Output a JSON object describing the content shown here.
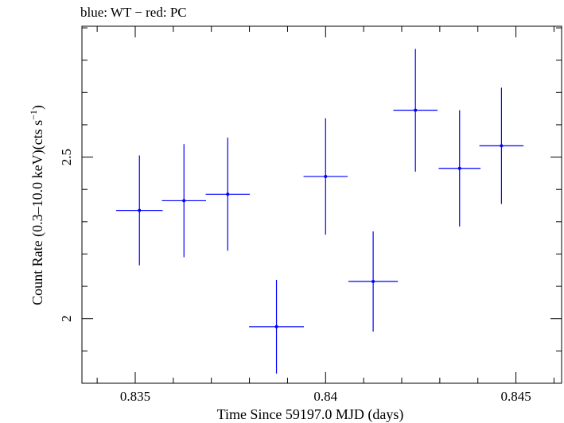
{
  "chart_data": {
    "type": "scatter",
    "title": "blue: WT − red: PC",
    "xlabel": "Time Since 59197.0 MJD (days)",
    "ylabel_main": "Count Rate (0.3–10.0 keV)(cts s",
    "ylabel_sup": "−1",
    "ylabel_end": ")",
    "xlim": [
      0.8336,
      0.8462
    ],
    "ylim": [
      1.8,
      2.905
    ],
    "xticks": [
      0.835,
      0.84,
      0.845
    ],
    "xtick_labels": [
      "0.835",
      "0.84",
      "0.845"
    ],
    "yticks": [
      2,
      2.5
    ],
    "ytick_labels": [
      "2",
      "2.5"
    ],
    "grid": false,
    "series": [
      {
        "color": "#0000ff",
        "points": [
          {
            "x": 0.83511,
            "y": 2.335,
            "xerr": 0.00061,
            "yerr": 0.17
          },
          {
            "x": 0.83628,
            "y": 2.365,
            "xerr": 0.00058,
            "yerr": 0.175
          },
          {
            "x": 0.83743,
            "y": 2.385,
            "xerr": 0.00058,
            "yerr": 0.175
          },
          {
            "x": 0.83871,
            "y": 1.975,
            "xerr": 0.00072,
            "yerr": 0.145
          },
          {
            "x": 0.84,
            "y": 2.44,
            "xerr": 0.00058,
            "yerr": 0.18
          },
          {
            "x": 0.84125,
            "y": 2.115,
            "xerr": 0.00065,
            "yerr": 0.155
          },
          {
            "x": 0.84236,
            "y": 2.645,
            "xerr": 0.00058,
            "yerr": 0.19
          },
          {
            "x": 0.84352,
            "y": 2.465,
            "xerr": 0.00055,
            "yerr": 0.18
          },
          {
            "x": 0.84462,
            "y": 2.535,
            "xerr": 0.00058,
            "yerr": 0.18
          }
        ]
      }
    ]
  }
}
